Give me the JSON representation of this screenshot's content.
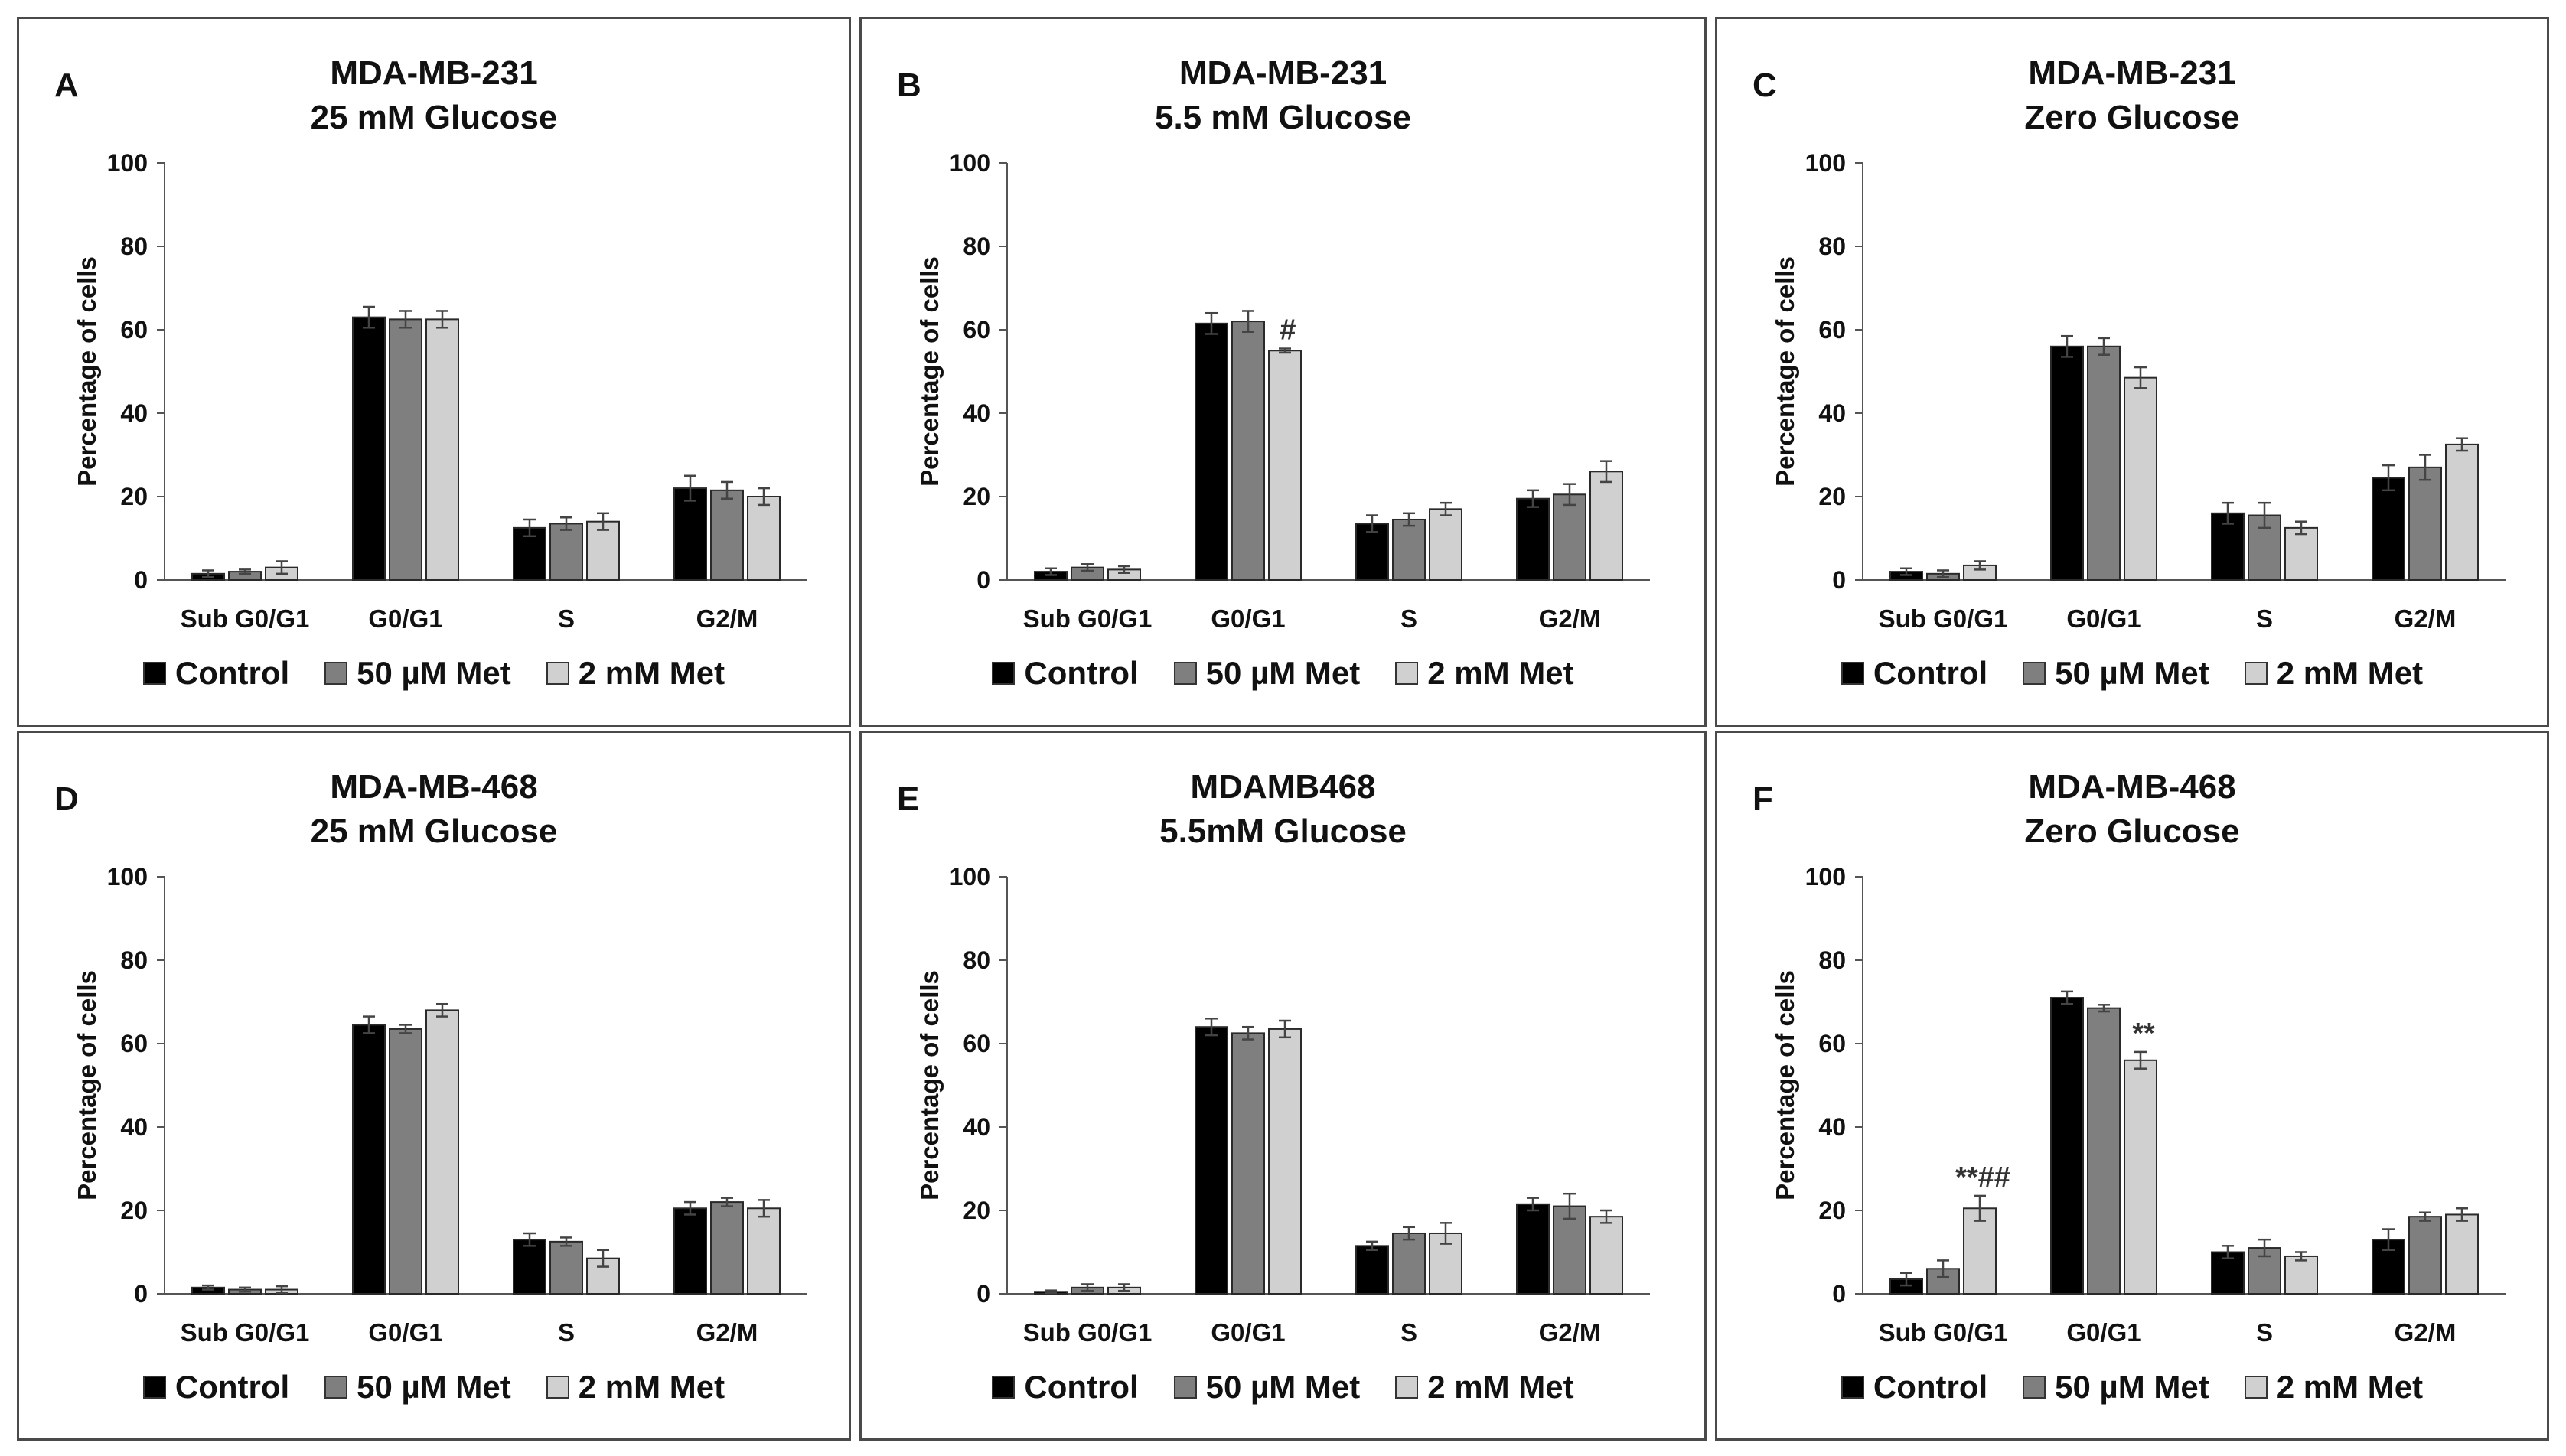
{
  "figure": {
    "legend": [
      {
        "label": "Control",
        "color": "#000000"
      },
      {
        "label": "50 µM Met",
        "color": "#7f7f7f"
      },
      {
        "label": "2 mM Met",
        "color": "#d0d0d0"
      }
    ],
    "bar_colors": [
      "#000000",
      "#7f7f7f",
      "#d0d0d0"
    ]
  },
  "chart_data": [
    {
      "panel": "A",
      "type": "bar",
      "title": [
        "MDA-MB-231",
        "25 mM Glucose"
      ],
      "xlabel": "",
      "ylabel": "Percentage of cells",
      "ylim": [
        0,
        100
      ],
      "yticks": [
        0,
        20,
        40,
        60,
        80,
        100
      ],
      "categories": [
        "Sub G0/G1",
        "G0/G1",
        "S",
        "G2/M"
      ],
      "series": [
        {
          "name": "Control",
          "values": [
            1.5,
            63,
            12.5,
            22
          ],
          "errors": [
            0.8,
            2.5,
            2,
            3
          ]
        },
        {
          "name": "50 µM Met",
          "values": [
            2,
            62.5,
            13.5,
            21.5
          ],
          "errors": [
            0.5,
            2,
            1.5,
            2
          ]
        },
        {
          "name": "2 mM Met",
          "values": [
            3,
            62.5,
            14,
            20
          ],
          "errors": [
            1.5,
            2,
            2,
            2
          ]
        }
      ],
      "annotations": []
    },
    {
      "panel": "B",
      "type": "bar",
      "title": [
        "MDA-MB-231",
        "5.5 mM Glucose"
      ],
      "xlabel": "",
      "ylabel": "Percentage of cells",
      "ylim": [
        0,
        100
      ],
      "yticks": [
        0,
        20,
        40,
        60,
        80,
        100
      ],
      "categories": [
        "Sub G0/G1",
        "G0/G1",
        "S",
        "G2/M"
      ],
      "series": [
        {
          "name": "Control",
          "values": [
            2,
            61.5,
            13.5,
            19.5
          ],
          "errors": [
            0.8,
            2.5,
            2,
            2
          ]
        },
        {
          "name": "50 µM Met",
          "values": [
            3,
            62,
            14.5,
            20.5
          ],
          "errors": [
            0.8,
            2.5,
            1.5,
            2.5
          ]
        },
        {
          "name": "2 mM Met",
          "values": [
            2.5,
            55,
            17,
            26
          ],
          "errors": [
            0.8,
            0.5,
            1.5,
            2.5
          ]
        }
      ],
      "annotations": [
        {
          "category": 1,
          "series": 2,
          "text": "#"
        }
      ]
    },
    {
      "panel": "C",
      "type": "bar",
      "title": [
        "MDA-MB-231",
        "Zero Glucose"
      ],
      "xlabel": "",
      "ylabel": "Percentage of cells",
      "ylim": [
        0,
        100
      ],
      "yticks": [
        0,
        20,
        40,
        60,
        80,
        100
      ],
      "categories": [
        "Sub G0/G1",
        "G0/G1",
        "S",
        "G2/M"
      ],
      "series": [
        {
          "name": "Control",
          "values": [
            2,
            56,
            16,
            24.5
          ],
          "errors": [
            0.8,
            2.5,
            2.5,
            3
          ]
        },
        {
          "name": "50 µM Met",
          "values": [
            1.5,
            56,
            15.5,
            27
          ],
          "errors": [
            0.8,
            2,
            3,
            3
          ]
        },
        {
          "name": "2 mM Met",
          "values": [
            3.5,
            48.5,
            12.5,
            32.5
          ],
          "errors": [
            1,
            2.5,
            1.5,
            1.5
          ]
        }
      ],
      "annotations": []
    },
    {
      "panel": "D",
      "type": "bar",
      "title": [
        "MDA-MB-468",
        "25 mM Glucose"
      ],
      "xlabel": "",
      "ylabel": "Percentage of cells",
      "ylim": [
        0,
        100
      ],
      "yticks": [
        0,
        20,
        40,
        60,
        80,
        100
      ],
      "categories": [
        "Sub G0/G1",
        "G0/G1",
        "S",
        "G2/M"
      ],
      "series": [
        {
          "name": "Control",
          "values": [
            1.5,
            64.5,
            13,
            20.5
          ],
          "errors": [
            0.5,
            2,
            1.5,
            1.5
          ]
        },
        {
          "name": "50 µM Met",
          "values": [
            1,
            63.5,
            12.5,
            22
          ],
          "errors": [
            0.5,
            1,
            1,
            1
          ]
        },
        {
          "name": "2 mM Met",
          "values": [
            1,
            68,
            8.5,
            20.5
          ],
          "errors": [
            0.8,
            1.5,
            2,
            2
          ]
        }
      ],
      "annotations": []
    },
    {
      "panel": "E",
      "type": "bar",
      "title": [
        "MDAMB468",
        "5.5mM Glucose"
      ],
      "xlabel": "",
      "ylabel": "Percentage of cells",
      "ylim": [
        0,
        100
      ],
      "yticks": [
        0,
        20,
        40,
        60,
        80,
        100
      ],
      "categories": [
        "Sub G0/G1",
        "G0/G1",
        "S",
        "G2/M"
      ],
      "series": [
        {
          "name": "Control",
          "values": [
            0.5,
            64,
            11.5,
            21.5
          ],
          "errors": [
            0.3,
            2,
            1,
            1.5
          ]
        },
        {
          "name": "50 µM Met",
          "values": [
            1.5,
            62.5,
            14.5,
            21
          ],
          "errors": [
            0.8,
            1.5,
            1.5,
            3
          ]
        },
        {
          "name": "2 mM Met",
          "values": [
            1.5,
            63.5,
            14.5,
            18.5
          ],
          "errors": [
            0.8,
            2,
            2.5,
            1.5
          ]
        }
      ],
      "annotations": []
    },
    {
      "panel": "F",
      "type": "bar",
      "title": [
        "MDA-MB-468",
        "Zero Glucose"
      ],
      "xlabel": "",
      "ylabel": "Percentage of cells",
      "ylim": [
        0,
        100
      ],
      "yticks": [
        0,
        20,
        40,
        60,
        80,
        100
      ],
      "categories": [
        "Sub G0/G1",
        "G0/G1",
        "S",
        "G2/M"
      ],
      "series": [
        {
          "name": "Control",
          "values": [
            3.5,
            71,
            10,
            13
          ],
          "errors": [
            1.5,
            1.5,
            1.5,
            2.5
          ]
        },
        {
          "name": "50 µM Met",
          "values": [
            6,
            68.5,
            11,
            18.5
          ],
          "errors": [
            2,
            0.8,
            2,
            1
          ]
        },
        {
          "name": "2 mM Met",
          "values": [
            20.5,
            56,
            9,
            19
          ],
          "errors": [
            3,
            2,
            1,
            1.5
          ]
        }
      ],
      "annotations": [
        {
          "category": 0,
          "series": 2,
          "text": "**##"
        },
        {
          "category": 1,
          "series": 2,
          "text": "**"
        }
      ]
    }
  ]
}
